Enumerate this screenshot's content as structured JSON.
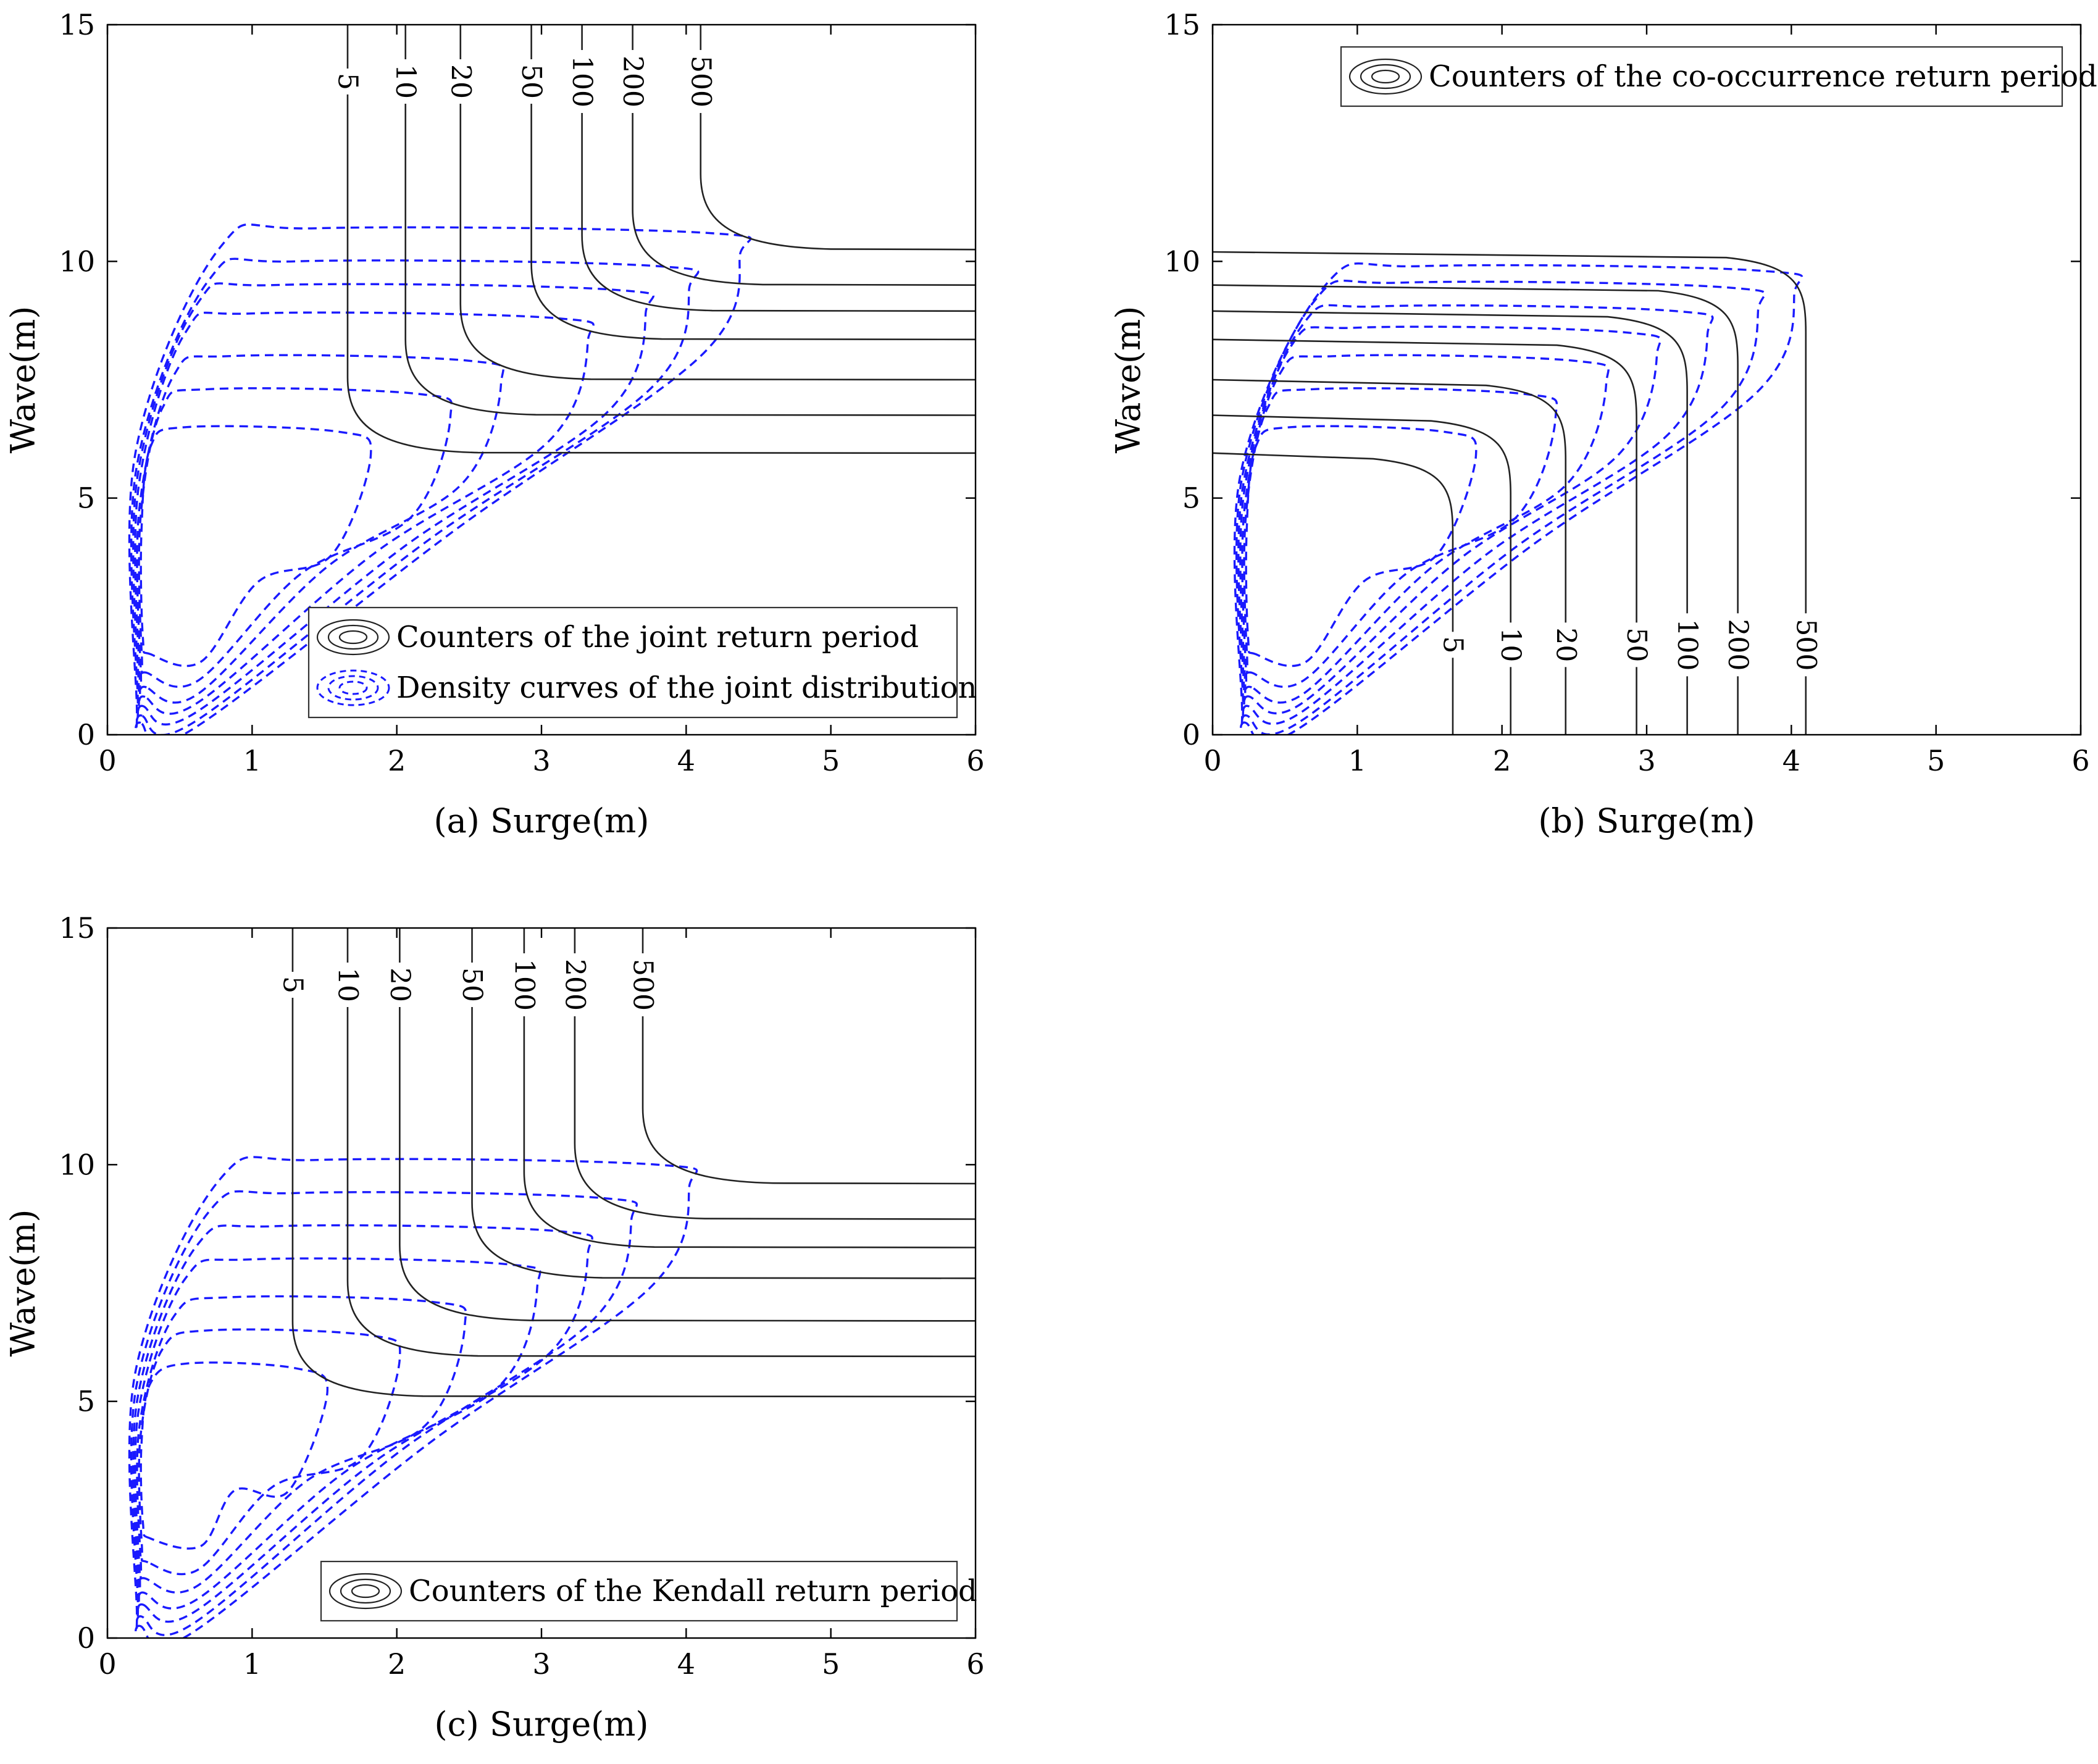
{
  "chart_data": [
    {
      "type": "contour",
      "panel": "a",
      "xlabel": "(a) Surge(m)",
      "ylabel": "Wave(m)",
      "xlim": [
        0,
        6
      ],
      "ylim": [
        0,
        15
      ],
      "xticks": [
        "0",
        "1",
        "2",
        "3",
        "4",
        "5",
        "6"
      ],
      "yticks": [
        "0",
        "5",
        "10",
        "15"
      ],
      "legend": {
        "position": "bottom-right",
        "entries": [
          "Counters of the joint return period",
          "Density curves of the joint distribution"
        ]
      },
      "return_period_contours": {
        "type": "OR",
        "labels": [
          "5",
          "10",
          "20",
          "50",
          "100",
          "200",
          "500"
        ],
        "surge_asymptote": [
          1.66,
          2.06,
          2.44,
          2.93,
          3.28,
          3.63,
          4.1
        ],
        "wave_asymptote": [
          5.95,
          6.75,
          7.5,
          8.35,
          8.95,
          9.5,
          10.25
        ]
      },
      "density_curves": [
        {
          "level": 1,
          "peak": [
            1.6,
            6.4
          ],
          "low_tail": [
            0.3,
            1.7
          ]
        },
        {
          "level": 2,
          "peak": [
            2.15,
            7.2
          ],
          "low_tail": [
            0.28,
            1.3
          ]
        },
        {
          "level": 3,
          "peak": [
            2.5,
            7.9
          ],
          "low_tail": [
            0.27,
            1.0
          ]
        },
        {
          "level": 4,
          "peak": [
            3.1,
            8.8
          ],
          "low_tail": [
            0.26,
            0.8
          ]
        },
        {
          "level": 5,
          "peak": [
            3.5,
            9.4
          ],
          "low_tail": [
            0.25,
            0.6
          ]
        },
        {
          "level": 6,
          "peak": [
            3.8,
            9.9
          ],
          "low_tail": [
            0.24,
            0.4
          ]
        },
        {
          "level": 7,
          "peak": [
            4.15,
            10.6
          ],
          "low_tail": [
            0.23,
            0.25
          ]
        }
      ]
    },
    {
      "type": "contour",
      "panel": "b",
      "xlabel": "(b) Surge(m)",
      "ylabel": "Wave(m)",
      "xlim": [
        0,
        6
      ],
      "ylim": [
        0,
        15
      ],
      "xticks": [
        "0",
        "1",
        "2",
        "3",
        "4",
        "5",
        "6"
      ],
      "yticks": [
        "0",
        "5",
        "10",
        "15"
      ],
      "legend": {
        "position": "top-right",
        "entries": [
          "Counters of the co-occurrence return period"
        ]
      },
      "return_period_contours": {
        "type": "AND",
        "labels": [
          "5",
          "10",
          "20",
          "50",
          "100",
          "200",
          "500"
        ],
        "surge_asymptote": [
          1.66,
          2.06,
          2.44,
          2.93,
          3.28,
          3.63,
          4.1
        ],
        "wave_asymptote": [
          5.95,
          6.75,
          7.5,
          8.35,
          8.95,
          9.5,
          10.2
        ]
      },
      "density_curves": [
        {
          "level": 1,
          "peak": [
            1.6,
            6.4
          ],
          "low_tail": [
            0.3,
            1.7
          ]
        },
        {
          "level": 2,
          "peak": [
            2.15,
            7.2
          ],
          "low_tail": [
            0.28,
            1.3
          ]
        },
        {
          "level": 3,
          "peak": [
            2.5,
            7.9
          ],
          "low_tail": [
            0.27,
            1.0
          ]
        },
        {
          "level": 4,
          "peak": [
            2.85,
            8.5
          ],
          "low_tail": [
            0.26,
            0.8
          ]
        },
        {
          "level": 5,
          "peak": [
            3.2,
            8.95
          ],
          "low_tail": [
            0.25,
            0.6
          ]
        },
        {
          "level": 6,
          "peak": [
            3.55,
            9.45
          ],
          "low_tail": [
            0.24,
            0.4
          ]
        },
        {
          "level": 7,
          "peak": [
            3.8,
            9.8
          ],
          "low_tail": [
            0.23,
            0.25
          ]
        }
      ]
    },
    {
      "type": "contour",
      "panel": "c",
      "xlabel": "(c) Surge(m)",
      "ylabel": "Wave(m)",
      "xlim": [
        0,
        6
      ],
      "ylim": [
        0,
        15
      ],
      "xticks": [
        "0",
        "1",
        "2",
        "3",
        "4",
        "5",
        "6"
      ],
      "yticks": [
        "0",
        "5",
        "10",
        "15"
      ],
      "legend": {
        "position": "bottom-right",
        "entries": [
          "Counters of the Kendall return period"
        ]
      },
      "return_period_contours": {
        "type": "Kendall",
        "labels": [
          "5",
          "10",
          "20",
          "50",
          "100",
          "200",
          "500"
        ],
        "surge_asymptote": [
          1.28,
          1.66,
          2.02,
          2.52,
          2.88,
          3.23,
          3.7
        ],
        "wave_asymptote": [
          5.1,
          5.95,
          6.7,
          7.6,
          8.25,
          8.85,
          9.6
        ]
      },
      "density_curves": [
        {
          "level": 1,
          "peak": [
            1.3,
            5.7
          ],
          "low_tail": [
            0.3,
            2.1
          ]
        },
        {
          "level": 2,
          "peak": [
            1.8,
            6.4
          ],
          "low_tail": [
            0.28,
            1.6
          ]
        },
        {
          "level": 3,
          "peak": [
            2.25,
            7.1
          ],
          "low_tail": [
            0.27,
            1.25
          ]
        },
        {
          "level": 4,
          "peak": [
            2.75,
            7.9
          ],
          "low_tail": [
            0.26,
            0.95
          ]
        },
        {
          "level": 5,
          "peak": [
            3.1,
            8.6
          ],
          "low_tail": [
            0.25,
            0.7
          ]
        },
        {
          "level": 6,
          "peak": [
            3.4,
            9.3
          ],
          "low_tail": [
            0.24,
            0.45
          ]
        },
        {
          "level": 7,
          "peak": [
            3.8,
            10.0
          ],
          "low_tail": [
            0.23,
            0.25
          ]
        }
      ]
    }
  ],
  "colors": {
    "contour": "#222222",
    "density": "#1a1aff",
    "axis": "#000000"
  }
}
